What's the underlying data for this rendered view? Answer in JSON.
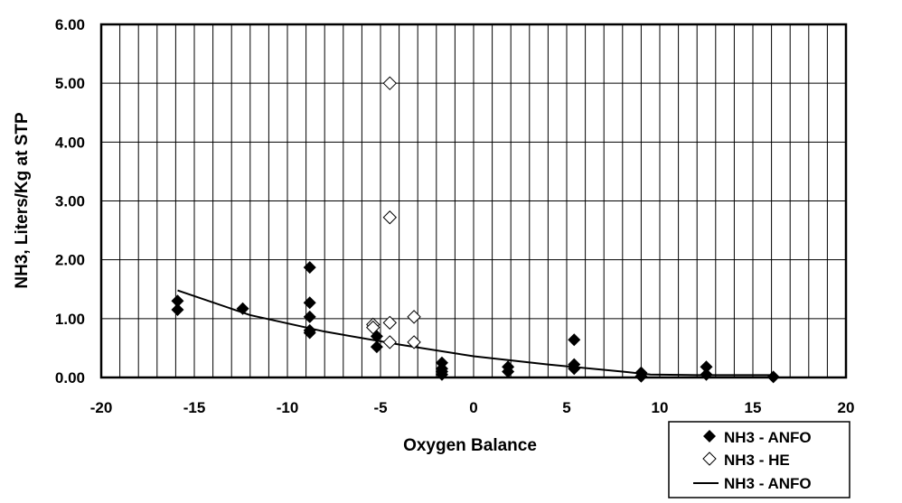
{
  "chart_data": {
    "type": "scatter",
    "title": "",
    "xlabel": "Oxygen Balance",
    "ylabel": "NH3, Liters/Kg at STP",
    "xlim": [
      -20,
      20
    ],
    "ylim": [
      0,
      6
    ],
    "x_ticks": [
      "-20",
      "-15",
      "-10",
      "-5",
      "0",
      "5",
      "10",
      "15",
      "20"
    ],
    "x_tick_values": [
      -20,
      -15,
      -10,
      -5,
      0,
      5,
      10,
      15,
      20
    ],
    "y_ticks": [
      "0.00",
      "1.00",
      "2.00",
      "3.00",
      "4.00",
      "5.00",
      "6.00"
    ],
    "y_tick_values": [
      0,
      1,
      2,
      3,
      4,
      5,
      6
    ],
    "grid": "vertical every 1 unit, horizontal every 1.00",
    "legend_position": "bottom-right, outside plot",
    "series": [
      {
        "name": "NH3 - ANFO",
        "marker": "filled-diamond",
        "color": "#000000",
        "points": [
          [
            -15.9,
            1.3
          ],
          [
            -15.9,
            1.15
          ],
          [
            -12.4,
            1.17
          ],
          [
            -8.8,
            1.87
          ],
          [
            -8.8,
            1.27
          ],
          [
            -8.8,
            1.03
          ],
          [
            -8.8,
            0.8
          ],
          [
            -8.8,
            0.76
          ],
          [
            -5.2,
            0.7
          ],
          [
            -5.2,
            0.52
          ],
          [
            -1.7,
            0.25
          ],
          [
            -1.7,
            0.15
          ],
          [
            -1.7,
            0.1
          ],
          [
            -1.7,
            0.05
          ],
          [
            1.85,
            0.18
          ],
          [
            1.85,
            0.1
          ],
          [
            5.4,
            0.64
          ],
          [
            5.4,
            0.22
          ],
          [
            5.4,
            0.15
          ],
          [
            9.0,
            0.08
          ],
          [
            9.0,
            0.02
          ],
          [
            12.5,
            0.18
          ],
          [
            12.5,
            0.05
          ],
          [
            16.1,
            0.01
          ]
        ]
      },
      {
        "name": "NH3 - HE",
        "marker": "open-diamond",
        "color": "#000000",
        "points": [
          [
            -5.4,
            0.9
          ],
          [
            -5.4,
            0.85
          ],
          [
            -4.5,
            5.0
          ],
          [
            -4.5,
            2.72
          ],
          [
            -4.5,
            0.93
          ],
          [
            -4.5,
            0.6
          ],
          [
            -3.2,
            1.03
          ],
          [
            -3.2,
            0.6
          ]
        ]
      },
      {
        "name": "NH3 - ANFO",
        "marker": "line",
        "color": "#000000",
        "points": [
          [
            -15.9,
            1.48
          ],
          [
            -12,
            1.06
          ],
          [
            -8,
            0.78
          ],
          [
            -4,
            0.56
          ],
          [
            0,
            0.36
          ],
          [
            4,
            0.22
          ],
          [
            8,
            0.1
          ],
          [
            9.5,
            0.05
          ],
          [
            12,
            0.04
          ],
          [
            16.1,
            0.04
          ]
        ]
      }
    ]
  }
}
